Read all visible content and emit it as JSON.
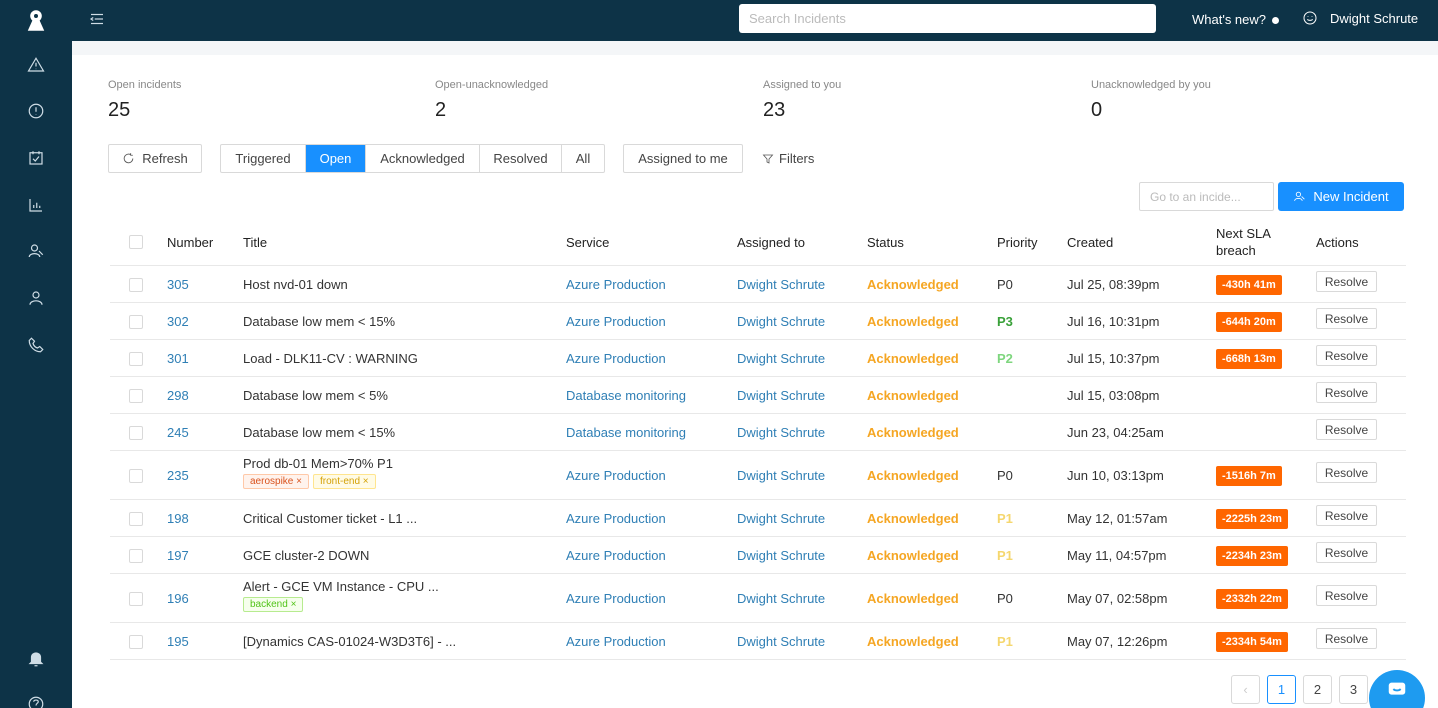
{
  "topbar": {
    "search_placeholder": "Search Incidents",
    "whats_new": "What's new?",
    "user_name": "Dwight Schrute"
  },
  "sidebar": {
    "icons": [
      "logo-icon",
      "alert-triangle-icon",
      "info-circle-icon",
      "calendar-check-icon",
      "bar-chart-icon",
      "users-icon",
      "user-icon",
      "phone-icon",
      "bell-icon",
      "help-icon"
    ]
  },
  "stats": [
    {
      "label": "Open incidents",
      "value": "25"
    },
    {
      "label": "Open-unacknowledged",
      "value": "2"
    },
    {
      "label": "Assigned to you",
      "value": "23"
    },
    {
      "label": "Unacknowledged by you",
      "value": "0"
    }
  ],
  "toolbar": {
    "refresh": "Refresh",
    "segments": [
      "Triggered",
      "Open",
      "Acknowledged",
      "Resolved",
      "All"
    ],
    "active_segment": "Open",
    "assigned_to_me": "Assigned to me",
    "filters": "Filters",
    "goto_placeholder": "Go to an incide...",
    "new_incident": "New Incident"
  },
  "table": {
    "headers": {
      "number": "Number",
      "title": "Title",
      "service": "Service",
      "assigned": "Assigned to",
      "status": "Status",
      "priority": "Priority",
      "created": "Created",
      "sla_line1": "Next SLA",
      "sla_line2": "breach",
      "actions": "Actions"
    },
    "rows": [
      {
        "number": "305",
        "title": "Host nvd-01 down",
        "service": "Azure Production",
        "assigned": "Dwight Schrute",
        "status": "Acknowledged",
        "priority": "P0",
        "created": "Jul 25, 08:39pm",
        "sla": "-430h 41m",
        "action": "Resolve",
        "tags": []
      },
      {
        "number": "302",
        "title": "Database low mem < 15%",
        "service": "Azure Production",
        "assigned": "Dwight Schrute",
        "status": "Acknowledged",
        "priority": "P3",
        "created": "Jul 16, 10:31pm",
        "sla": "-644h 20m",
        "action": "Resolve",
        "tags": []
      },
      {
        "number": "301",
        "title": "Load - DLK11-CV : WARNING",
        "service": "Azure Production",
        "assigned": "Dwight Schrute",
        "status": "Acknowledged",
        "priority": "P2",
        "created": "Jul 15, 10:37pm",
        "sla": "-668h 13m",
        "action": "Resolve",
        "tags": []
      },
      {
        "number": "298",
        "title": "Database low mem < 5%",
        "service": "Database monitoring",
        "assigned": "Dwight Schrute",
        "status": "Acknowledged",
        "priority": "",
        "created": "Jul 15, 03:08pm",
        "sla": "",
        "action": "Resolve",
        "tags": []
      },
      {
        "number": "245",
        "title": "Database low mem < 15%",
        "service": "Database monitoring",
        "assigned": "Dwight Schrute",
        "status": "Acknowledged",
        "priority": "",
        "created": "Jun 23, 04:25am",
        "sla": "",
        "action": "Resolve",
        "tags": []
      },
      {
        "number": "235",
        "title": "Prod db-01 Mem>70% P1",
        "service": "Azure Production",
        "assigned": "Dwight Schrute",
        "status": "Acknowledged",
        "priority": "P0",
        "created": "Jun 10, 03:13pm",
        "sla": "-1516h 7m",
        "action": "Resolve",
        "tags": [
          {
            "label": "aerospike",
            "color": "orange"
          },
          {
            "label": "front-end",
            "color": "yellow"
          }
        ]
      },
      {
        "number": "198",
        "title": "Critical Customer ticket - L1 ...",
        "service": "Azure Production",
        "assigned": "Dwight Schrute",
        "status": "Acknowledged",
        "priority": "P1",
        "created": "May 12, 01:57am",
        "sla": "-2225h 23m",
        "action": "Resolve",
        "tags": []
      },
      {
        "number": "197",
        "title": "GCE cluster-2 DOWN",
        "service": "Azure Production",
        "assigned": "Dwight Schrute",
        "status": "Acknowledged",
        "priority": "P1",
        "created": "May 11, 04:57pm",
        "sla": "-2234h 23m",
        "action": "Resolve",
        "tags": []
      },
      {
        "number": "196",
        "title": "Alert - GCE VM Instance - CPU ...",
        "service": "Azure Production",
        "assigned": "Dwight Schrute",
        "status": "Acknowledged",
        "priority": "P0",
        "created": "May 07, 02:58pm",
        "sla": "-2332h 22m",
        "action": "Resolve",
        "tags": [
          {
            "label": "backend",
            "color": "green"
          }
        ]
      },
      {
        "number": "195",
        "title": "[Dynamics CAS-01024-W3D3T6] - ...",
        "service": "Azure Production",
        "assigned": "Dwight Schrute",
        "status": "Acknowledged",
        "priority": "P1",
        "created": "May 07, 12:26pm",
        "sla": "-2334h 54m",
        "action": "Resolve",
        "tags": []
      }
    ]
  },
  "pagination": {
    "prev": "‹",
    "pages": [
      "1",
      "2",
      "3"
    ],
    "active_page": "1"
  },
  "colors": {
    "sidebar": "#0d3347",
    "accent": "#1890ff",
    "status_acknowledged": "#f5a623",
    "sla_badge": "#ff6600"
  }
}
